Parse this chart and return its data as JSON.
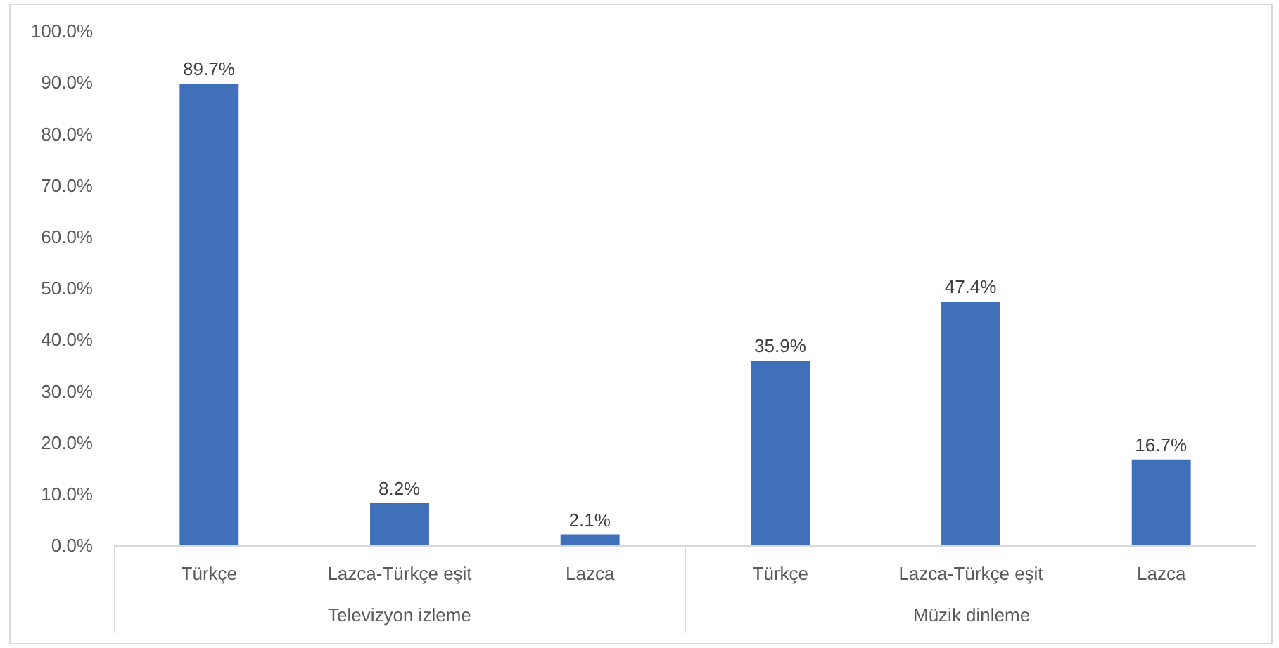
{
  "chart_data": {
    "type": "bar",
    "categories": [
      "Türkçe",
      "Lazca-Türkçe eşit",
      "Lazca",
      "Türkçe",
      "Lazca-Türkçe eşit",
      "Lazca"
    ],
    "values": [
      89.7,
      8.2,
      2.1,
      35.9,
      47.4,
      16.7
    ],
    "value_labels": [
      "89.7%",
      "8.2%",
      "2.1%",
      "35.9%",
      "47.4%",
      "16.7%"
    ],
    "color": "#4070b9",
    "ylim": [
      0,
      100
    ],
    "yticks": [
      {
        "value": 0,
        "label": "0.0%"
      },
      {
        "value": 10,
        "label": "10.0%"
      },
      {
        "value": 20,
        "label": "20.0%"
      },
      {
        "value": 30,
        "label": "30.0%"
      },
      {
        "value": 40,
        "label": "40.0%"
      },
      {
        "value": 50,
        "label": "50.0%"
      },
      {
        "value": 60,
        "label": "60.0%"
      },
      {
        "value": 70,
        "label": "70.0%"
      },
      {
        "value": 80,
        "label": "80.0%"
      },
      {
        "value": 90,
        "label": "90.0%"
      },
      {
        "value": 100,
        "label": "100.0%"
      }
    ],
    "annotations": [
      "Televizyon izleme",
      "Müzik dinleme"
    ]
  }
}
